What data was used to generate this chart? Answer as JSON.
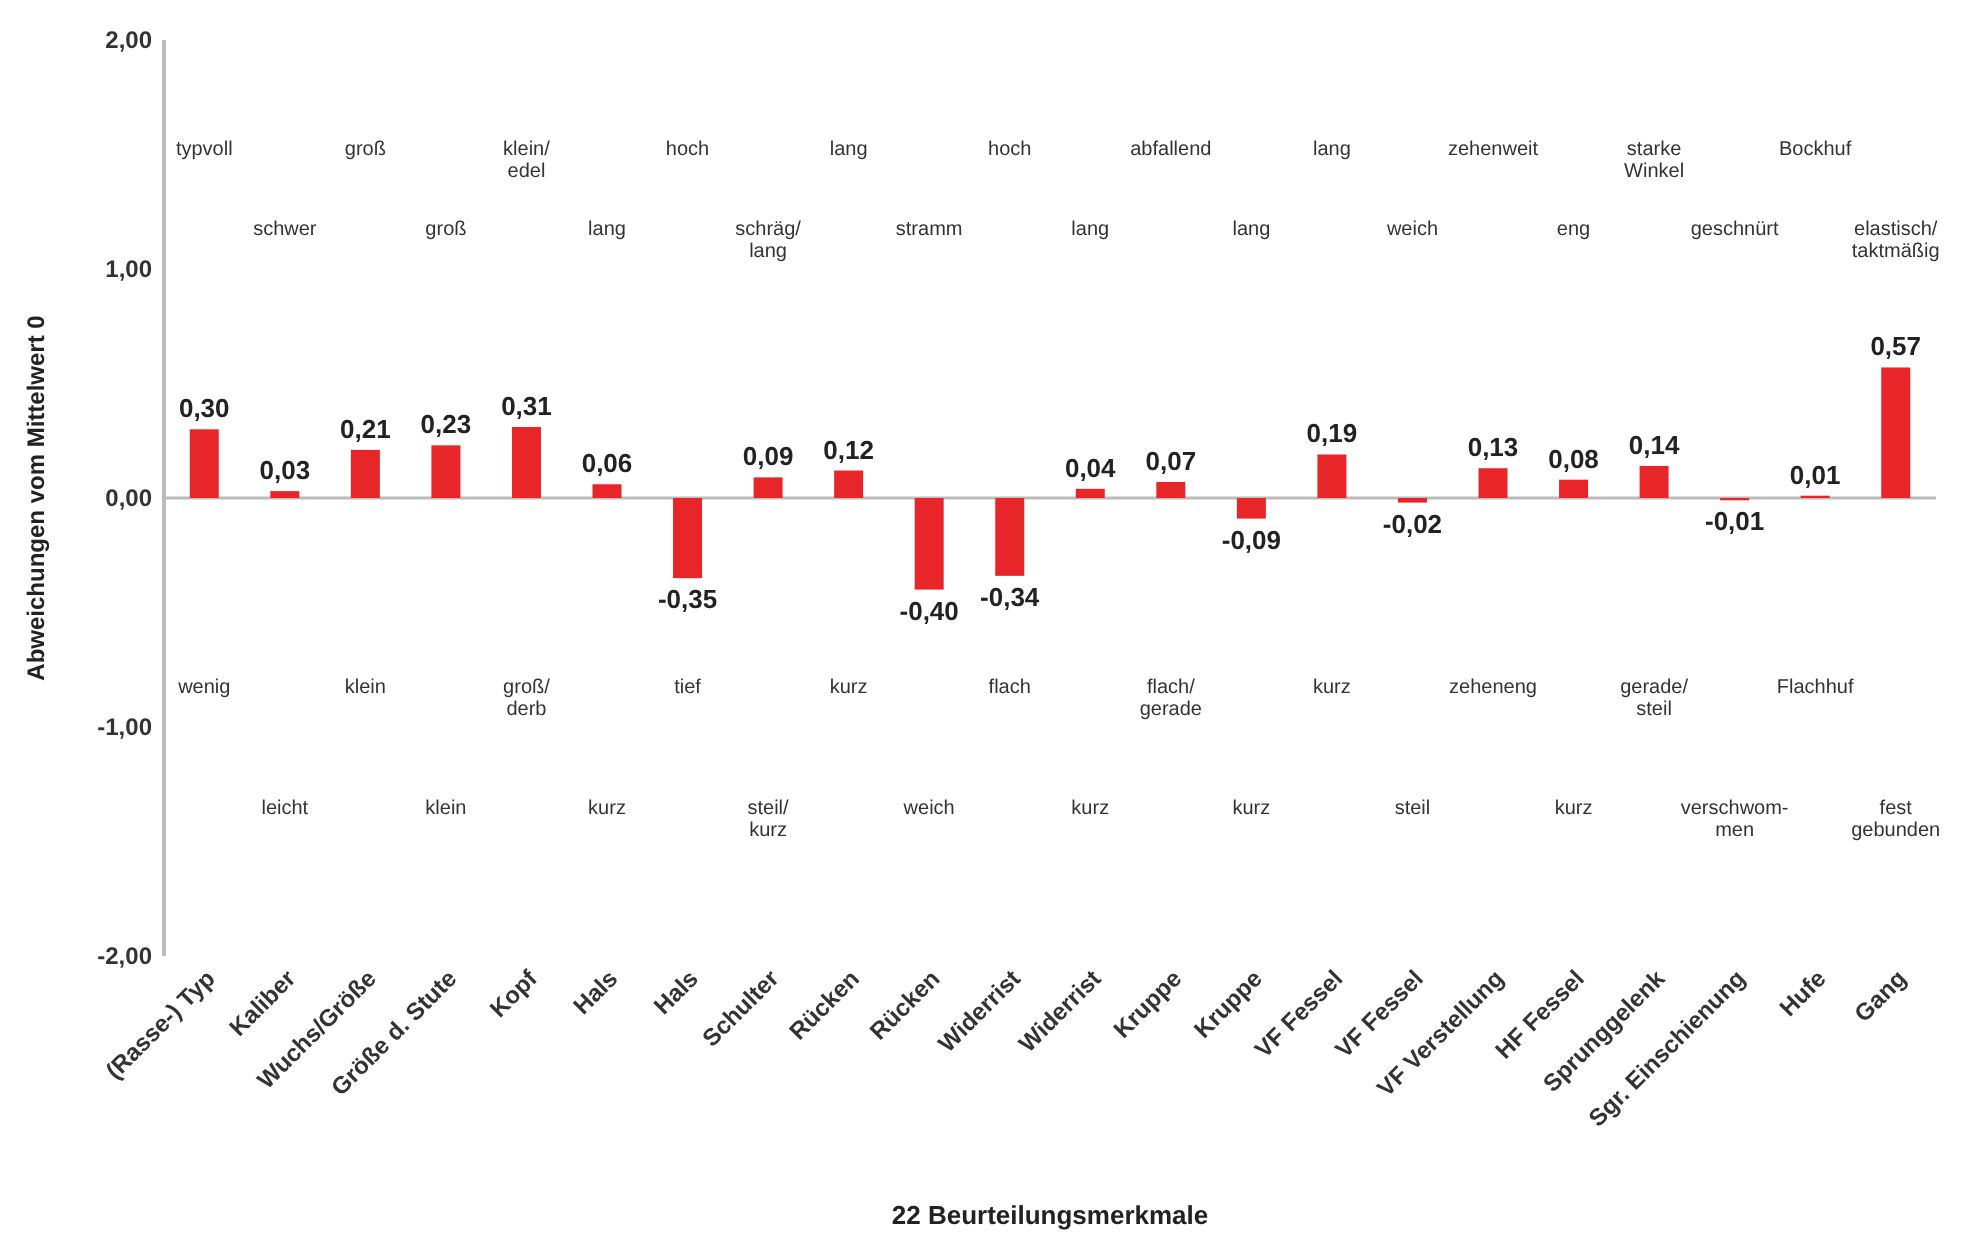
{
  "chart_data": {
    "type": "bar",
    "xlabel": "22 Beurteilungsmerkmale",
    "ylabel": "Abweichungen vom Mittelwert 0",
    "categories": [
      "(Rasse-) Typ",
      "Kaliber",
      "Wuchs/Größe",
      "Größe d. Stute",
      "Kopf",
      "Hals",
      "Hals",
      "Schulter",
      "Rücken",
      "Rücken",
      "Widerrist",
      "Widerrist",
      "Kruppe",
      "Kruppe",
      "VF Fessel",
      "VF Fessel",
      "VF Verstellung",
      "HF Fessel",
      "Sprunggelenk",
      "Sgr. Einschienung",
      "Hufe",
      "Gang"
    ],
    "values": [
      0.3,
      0.03,
      0.21,
      0.23,
      0.31,
      0.06,
      -0.35,
      0.09,
      0.12,
      -0.4,
      -0.34,
      0.04,
      0.07,
      -0.09,
      0.19,
      -0.02,
      0.13,
      0.08,
      0.14,
      -0.01,
      0.01,
      0.57
    ],
    "value_labels": [
      "0,30",
      "0,03",
      "0,21",
      "0,23",
      "0,31",
      "0,06",
      "-0,35",
      "0,09",
      "0,12",
      "-0,40",
      "-0,34",
      "0,04",
      "0,07",
      "-0,09",
      "0,19",
      "-0,02",
      "0,13",
      "0,08",
      "0,14",
      "-0,01",
      "0,01",
      "0,57"
    ],
    "color": "#e8262a",
    "ylim": [
      -2,
      2
    ],
    "yticks": [
      {
        "value": -2,
        "label": "-2,00"
      },
      {
        "value": -1,
        "label": "-1,00"
      },
      {
        "value": 0,
        "label": "0,00"
      },
      {
        "value": 1,
        "label": "1,00"
      },
      {
        "value": 2,
        "label": "2,00"
      }
    ],
    "annotations": [
      "typvoll",
      "wenig",
      "schwer",
      "leicht",
      "groß",
      "klein",
      "groß",
      "klein",
      "klein/\nedel",
      "groß/\nderb",
      "lang",
      "kurz",
      "hoch",
      "tief",
      "schräg/\nlang",
      "steil/\nkurz",
      "lang",
      "kurz",
      "stramm",
      "weich",
      "hoch",
      "flach",
      "lang",
      "kurz",
      "abfallend",
      "flach/\ngerade",
      "lang",
      "kurz",
      "lang",
      "kurz",
      "weich",
      "steil",
      "zehenweit",
      "zeheneng",
      "eng",
      "kurz",
      "starke\nWinkel",
      "gerade/\nsteil",
      "geschnürt",
      "verschwom-\nmen",
      "Bockhuf",
      "Flachhuf",
      "elastisch/\ntaktmäßig",
      "fest\ngebunden"
    ]
  }
}
